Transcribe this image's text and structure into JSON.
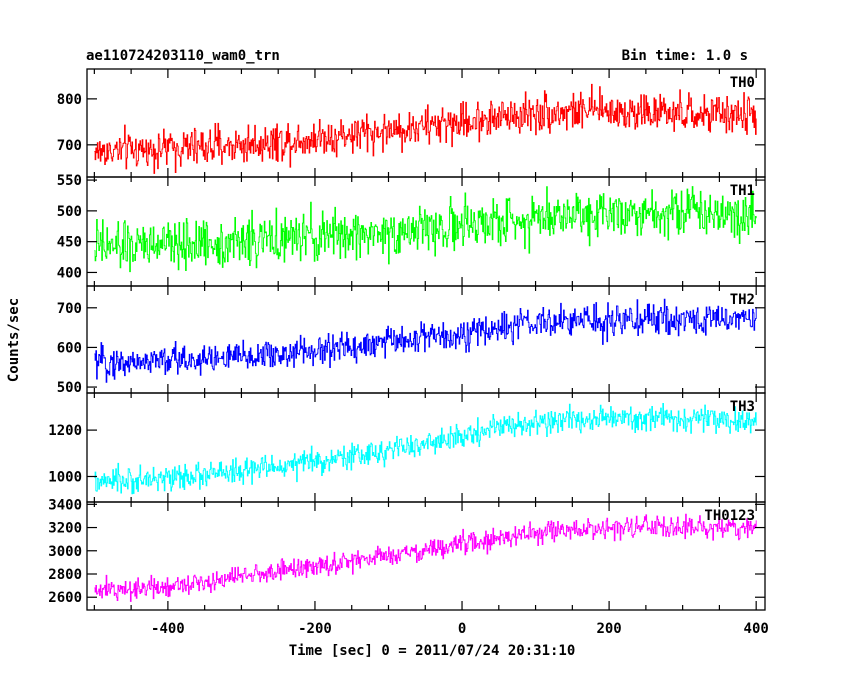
{
  "header": {
    "obs_id": "ae110724203110_wam0_trn",
    "bin_time": "Bin time: 1.0 s"
  },
  "chart_data": {
    "type": "line",
    "x_label": "Time [sec] 0 = 2011/07/24 20:31:10",
    "y_label": "Counts/sec",
    "x_range": [
      -510,
      412
    ],
    "x_ticks": [
      -400,
      -200,
      0,
      200,
      400
    ],
    "x_step_sec": 1.0,
    "panels": [
      {
        "label": "TH0",
        "color": "#ff0000",
        "y_range": [
          630,
          865
        ],
        "y_ticks": [
          700,
          800
        ],
        "trend": [
          [
            -500,
            685
          ],
          [
            -300,
            700
          ],
          [
            -100,
            730
          ],
          [
            0,
            750
          ],
          [
            100,
            770
          ],
          [
            200,
            775
          ],
          [
            300,
            765
          ],
          [
            400,
            765
          ]
        ],
        "noise": 30
      },
      {
        "label": "TH1",
        "color": "#00ff00",
        "y_range": [
          378,
          555
        ],
        "y_ticks": [
          400,
          450,
          500,
          550
        ],
        "trend": [
          [
            -500,
            440
          ],
          [
            -300,
            450
          ],
          [
            -100,
            465
          ],
          [
            0,
            475
          ],
          [
            100,
            490
          ],
          [
            200,
            500
          ],
          [
            300,
            500
          ],
          [
            400,
            495
          ]
        ],
        "noise": 28
      },
      {
        "label": "TH2",
        "color": "#0000ff",
        "y_range": [
          485,
          755
        ],
        "y_ticks": [
          500,
          600,
          700
        ],
        "trend": [
          [
            -500,
            560
          ],
          [
            -300,
            575
          ],
          [
            -200,
            590
          ],
          [
            -100,
            615
          ],
          [
            0,
            635
          ],
          [
            100,
            660
          ],
          [
            200,
            670
          ],
          [
            300,
            670
          ],
          [
            400,
            675
          ]
        ],
        "noise": 28
      },
      {
        "label": "TH3",
        "color": "#00ffff",
        "y_range": [
          890,
          1360
        ],
        "y_ticks": [
          1000,
          1200
        ],
        "trend": [
          [
            -500,
            970
          ],
          [
            -300,
            1020
          ],
          [
            -100,
            1110
          ],
          [
            0,
            1170
          ],
          [
            50,
            1220
          ],
          [
            200,
            1250
          ],
          [
            300,
            1250
          ],
          [
            400,
            1230
          ]
        ],
        "noise": 38
      },
      {
        "label": "TH0123",
        "color": "#ff00ff",
        "y_range": [
          2490,
          3420
        ],
        "y_ticks": [
          2600,
          2800,
          3000,
          3200,
          3400
        ],
        "trend": [
          [
            -500,
            2650
          ],
          [
            -400,
            2700
          ],
          [
            -300,
            2780
          ],
          [
            -200,
            2870
          ],
          [
            -100,
            2950
          ],
          [
            0,
            3060
          ],
          [
            100,
            3150
          ],
          [
            200,
            3200
          ],
          [
            300,
            3200
          ],
          [
            400,
            3200
          ]
        ],
        "noise": 65
      }
    ]
  }
}
